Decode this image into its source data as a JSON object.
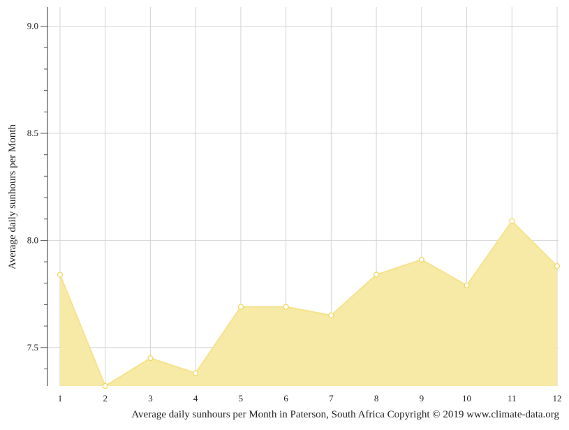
{
  "chart_data": {
    "type": "area",
    "title": "",
    "xlabel": "",
    "ylabel": "Average daily sunhours per Month",
    "caption": "Average daily sunhours per Month in Paterson, South Africa Copyright © 2019 www.climate-data.org",
    "x": [
      1,
      2,
      3,
      4,
      5,
      6,
      7,
      8,
      9,
      10,
      11,
      12
    ],
    "x_tick_labels": [
      "1",
      "2",
      "3",
      "4",
      "5",
      "6",
      "7",
      "8",
      "9",
      "10",
      "11",
      "12"
    ],
    "y_tick_values": [
      7.5,
      8.0,
      8.5,
      9.0
    ],
    "y_tick_labels": [
      "7.5",
      "8.0",
      "8.5",
      "9.0"
    ],
    "ylim": [
      7.32,
      9.09
    ],
    "grid": true,
    "legend": "none",
    "series": [
      {
        "values": [
          7.84,
          7.32,
          7.45,
          7.38,
          7.69,
          7.69,
          7.65,
          7.84,
          7.91,
          7.79,
          8.09,
          7.88
        ],
        "fill_color": "#f7e9a6",
        "line_color": "#f5e38c",
        "point_stroke": "#f2d55a"
      }
    ]
  }
}
